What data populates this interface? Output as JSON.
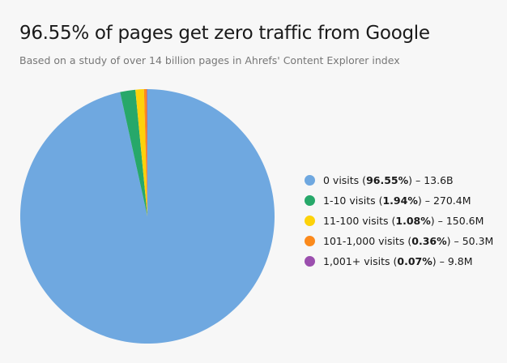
{
  "chart_data": {
    "type": "pie",
    "title": "96.55% of pages get zero traffic from Google",
    "subtitle": "Based on a study of over 14 billion pages in Ahrefs' Content Explorer index",
    "legend_position": "right",
    "slices": [
      {
        "label": "0 visits",
        "percent": 96.55,
        "percent_text": "96.55%",
        "count": "13.6B",
        "color": "#6fa8e0"
      },
      {
        "label": "1-10 visits",
        "percent": 1.94,
        "percent_text": "1.94%",
        "count": "270.4M",
        "color": "#27a86a"
      },
      {
        "label": "11-100 visits",
        "percent": 1.08,
        "percent_text": "1.08%",
        "count": "150.6M",
        "color": "#fdd20a"
      },
      {
        "label": "101-1,000 visits",
        "percent": 0.36,
        "percent_text": "0.36%",
        "count": "50.3M",
        "color": "#fb8a1c"
      },
      {
        "label": "1,001+ visits",
        "percent": 0.07,
        "percent_text": "0.07%",
        "count": "9.8M",
        "color": "#9b4fae"
      }
    ]
  }
}
